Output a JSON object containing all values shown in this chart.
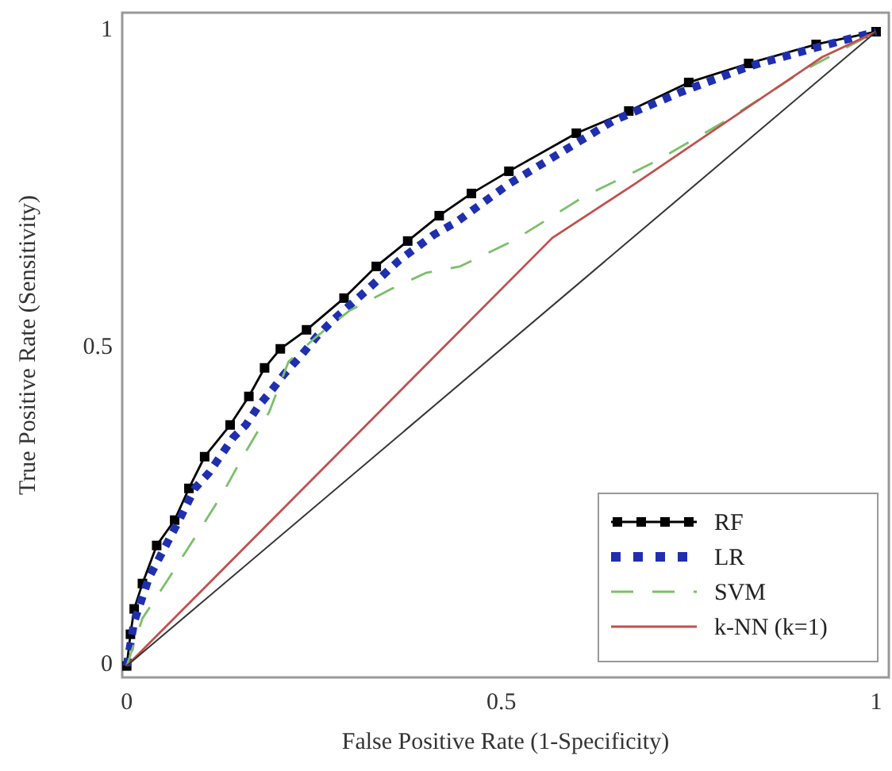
{
  "chart_data": {
    "type": "line",
    "xlabel": "False Positive Rate (1-Specificity)",
    "ylabel": "True Positive Rate (Sensitivity)",
    "xlim": [
      -0.006,
      1.017
    ],
    "ylim": [
      -0.018,
      1.03
    ],
    "xticks": [
      0,
      0.5,
      1
    ],
    "yticks": [
      0,
      0.5,
      1
    ],
    "grid": false,
    "legend": "bottom right",
    "series": [
      {
        "name": "RF",
        "color": "#000000",
        "marker": "square",
        "line_style": "solid",
        "x": [
          0,
          0.005,
          0.01,
          0.021,
          0.04,
          0.064,
          0.083,
          0.104,
          0.138,
          0.163,
          0.184,
          0.205,
          0.24,
          0.29,
          0.333,
          0.375,
          0.417,
          0.46,
          0.51,
          0.6,
          0.67,
          0.75,
          0.83,
          0.92,
          1
        ],
        "values": [
          0,
          0.05,
          0.09,
          0.13,
          0.19,
          0.23,
          0.28,
          0.33,
          0.38,
          0.425,
          0.47,
          0.5,
          0.53,
          0.58,
          0.63,
          0.67,
          0.71,
          0.745,
          0.78,
          0.84,
          0.875,
          0.92,
          0.95,
          0.98,
          1
        ]
      },
      {
        "name": "LR",
        "color": "#1f2fb0",
        "line_style": "dotted",
        "x": [
          0,
          0.01,
          0.03,
          0.07,
          0.091,
          0.11,
          0.142,
          0.159,
          0.176,
          0.197,
          0.21,
          0.233,
          0.254,
          0.275,
          0.318,
          0.364,
          0.41,
          0.44,
          0.51,
          0.58,
          0.65,
          0.74,
          0.83,
          0.92,
          1
        ],
        "values": [
          0,
          0.07,
          0.14,
          0.23,
          0.28,
          0.305,
          0.36,
          0.38,
          0.41,
          0.44,
          0.46,
          0.49,
          0.52,
          0.545,
          0.59,
          0.64,
          0.68,
          0.7,
          0.76,
          0.81,
          0.86,
          0.905,
          0.945,
          0.975,
          1
        ]
      },
      {
        "name": "SVM",
        "color": "#7cbf6a",
        "line_style": "dashed",
        "x": [
          0,
          0.021,
          0.057,
          0.095,
          0.127,
          0.155,
          0.19,
          0.216,
          0.254,
          0.297,
          0.354,
          0.4,
          0.445,
          0.515,
          0.61,
          0.705,
          0.8,
          0.905,
          1
        ],
        "values": [
          0,
          0.075,
          0.14,
          0.21,
          0.27,
          0.33,
          0.4,
          0.48,
          0.52,
          0.56,
          0.595,
          0.62,
          0.63,
          0.67,
          0.74,
          0.795,
          0.86,
          0.94,
          1
        ]
      },
      {
        "name": "k-NN (k=1)",
        "color": "#c0504d",
        "line_style": "solid",
        "x": [
          0,
          0.568,
          0.678,
          0.784,
          0.928,
          1
        ],
        "values": [
          0,
          0.675,
          0.76,
          0.845,
          0.96,
          1
        ]
      },
      {
        "color": "#333333",
        "line_style": "solid",
        "x": [
          0,
          1
        ],
        "values": [
          0,
          1
        ]
      }
    ]
  }
}
